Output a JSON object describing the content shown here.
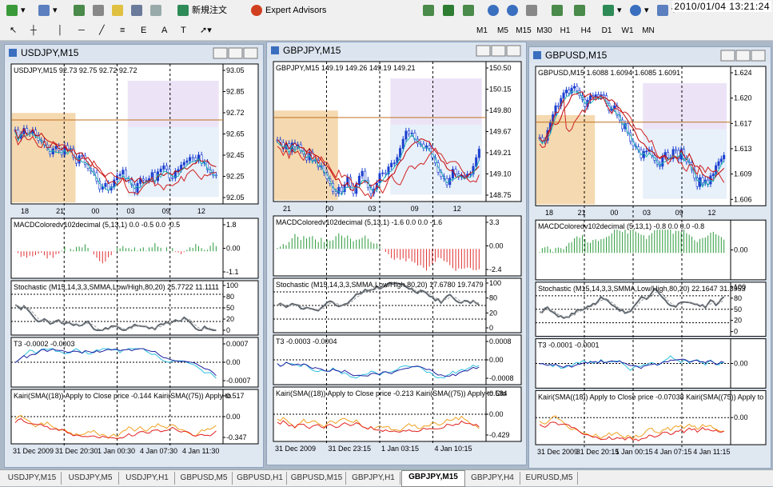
{
  "toolbar": {
    "new_order": "新規注文",
    "expert_advisors": "Expert Advisors",
    "timeframes": [
      "M1",
      "M5",
      "M15",
      "M30",
      "H1",
      "H4",
      "D1",
      "W1",
      "MN"
    ],
    "clock": "2010/01/04 13:21:24"
  },
  "windows": [
    {
      "title": "USDJPY,M15",
      "price_header": "USDJPY,M15  92.73 92.75 92.72 92.72",
      "price_axis": [
        "93.05",
        "92.85",
        "92.72",
        "92.65",
        "92.45",
        "92.25",
        "92.05"
      ],
      "price_time_axis": [
        "18",
        "21",
        "00",
        "03",
        "09",
        "12"
      ],
      "macd_header": "MACDColoredv102decimal (5,13,1) 0.0 -0.5 0.0 -0.5",
      "macd_axis": [
        "1.8",
        "0.00",
        "-1.1"
      ],
      "stoch_header": "Stochastic (M15,14,3,3,SMMA,Low/High,80,20) 25.7722 11.1111",
      "stoch_axis": [
        "100",
        "80",
        "50",
        "20",
        "0"
      ],
      "t3_header": "T3 -0.0002 -0.0003",
      "t3_axis": [
        "0.0007",
        "0.00",
        "-0.0007"
      ],
      "kairi_header": "Kairi(SMA((18)) Apply to Close price -0.144  Kairi(SMA((75)) Apply to",
      "kairi_axis": [
        "0.517",
        "0.00",
        "-0.347"
      ],
      "time_axis": [
        "31 Dec 2009",
        "31 Dec 20:30",
        "1 Jan 00:30",
        "4 Jan 07:30",
        "4 Jan 11:30"
      ]
    },
    {
      "title": "GBPJPY,M15",
      "price_header": "GBPJPY,M15  149.19 149.26 149.19 149.21",
      "price_axis": [
        "150.50",
        "150.15",
        "149.80",
        "149.67",
        "149.21",
        "149.10",
        "148.75"
      ],
      "price_time_axis": [
        "21",
        "00",
        "03",
        "09",
        "12"
      ],
      "macd_header": "MACDColoredv102decimal (5,13,1) -1.6 0.0 0.0 -1.6",
      "macd_axis": [
        "3.3",
        "0.00",
        "-2.4"
      ],
      "stoch_header": "Stochastic (M15,14,3,3,SMMA,Low/High,80,20) 17.6780 19.7479",
      "stoch_axis": [
        "100",
        "80",
        "20",
        "0"
      ],
      "t3_header": "T3 -0.0003 -0.0004",
      "t3_axis": [
        "0.0008",
        "0.00",
        "-0.0008"
      ],
      "kairi_header": "Kairi(SMA((18)) Apply to Close price -0.213  Kairi(SMA((75)) Apply to Clo",
      "kairi_axis": [
        "0.584",
        "0.00",
        "-0.429"
      ],
      "time_axis": [
        "31 Dec 2009",
        "31 Dec 23:15",
        "1 Jan 03:15",
        "4 Jan 10:15"
      ]
    },
    {
      "title": "GBPUSD,M15",
      "price_header": "GBPUSD,M15  1.6088 1.6094 1.6085 1.6091",
      "price_axis": [
        "1.624",
        "1.620",
        "1.617",
        "1.613",
        "1.609",
        "1.606"
      ],
      "price_time_axis": [
        "18",
        "21",
        "00",
        "03",
        "09",
        "12"
      ],
      "macd_header": "MACDColoredv102decimal (5,13,1) -0.8 0.0 0.0 -0.8",
      "macd_axis": [
        "0.00"
      ],
      "stoch_header": "Stochastic (M15,14,3,3,SMMA,Low/High,80,20) 22.1647 31.3953",
      "stoch_axis": [
        "100",
        "80",
        "50",
        "20",
        "0"
      ],
      "t3_header": "T3 -0.0001 -0.0001",
      "t3_axis": [
        "0.00"
      ],
      "kairi_header": "Kairi(SMA((18)) Apply to Close price -0.07038  Kairi(SMA((75)) Apply to",
      "kairi_axis": [
        "0.00"
      ],
      "time_axis": [
        "31 Dec 2009",
        "31 Dec 20:15",
        "1 Jan 00:15",
        "4 Jan 07:15",
        "4 Jan 11:15"
      ]
    }
  ],
  "tabs": [
    "USDJPY,M15",
    "USDJPY,M5",
    "USDJPY,H1",
    "GBPUSD,M5",
    "GBPUSD,H1",
    "GBPUSD,M15",
    "GBPJPY,H1",
    "GBPJPY,M15",
    "GBPJPY,H4",
    "EURUSD,M5"
  ]
}
